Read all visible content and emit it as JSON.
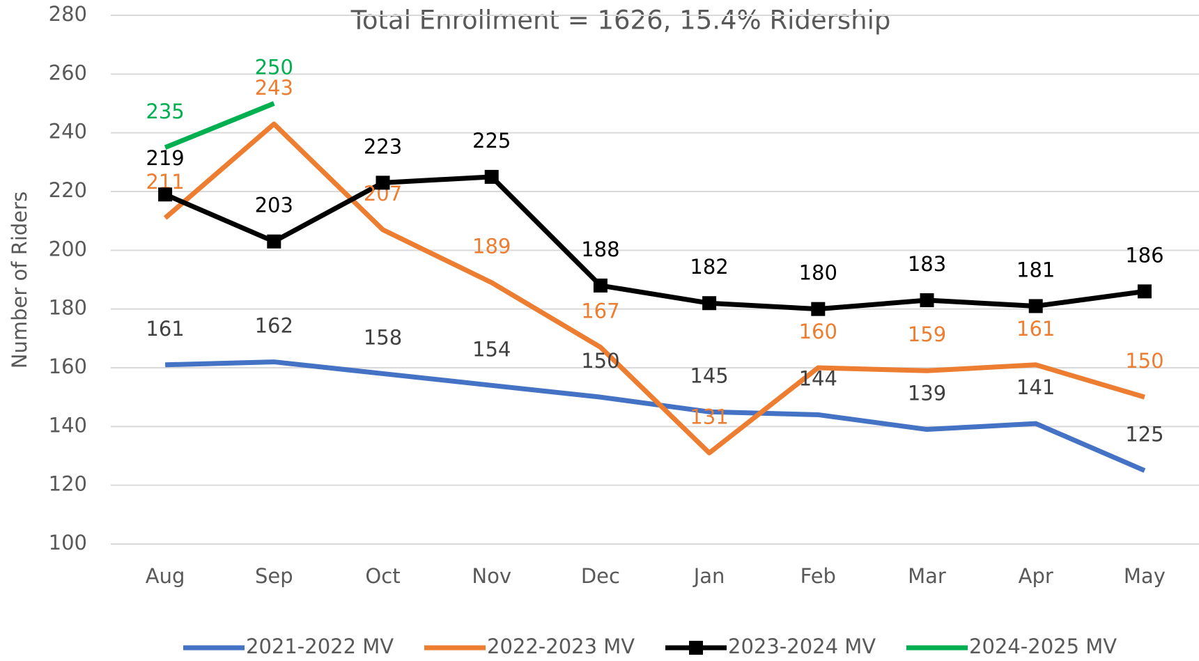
{
  "chart_data": {
    "type": "line",
    "title": "Total Enrollment = 1626, 15.4% Ridership",
    "y_label": "Number of Riders",
    "categories": [
      "Aug",
      "Sep",
      "Oct",
      "Nov",
      "Dec",
      "Jan",
      "Feb",
      "Mar",
      "Apr",
      "May"
    ],
    "series": [
      {
        "name": "2021-2022 MV",
        "color": "#4472c4",
        "label_color": "#404040",
        "values": [
          161,
          162,
          158,
          154,
          150,
          145,
          144,
          139,
          141,
          125
        ]
      },
      {
        "name": "2022-2023 MV",
        "color": "#ed7d31",
        "label_color": "#ed7d31",
        "values": [
          211,
          243,
          207,
          189,
          167,
          131,
          160,
          159,
          161,
          150
        ]
      },
      {
        "name": "2023-2024 MV",
        "color": "#000000",
        "label_color": "#000000",
        "marker": "square",
        "values": [
          219,
          203,
          223,
          225,
          188,
          182,
          180,
          183,
          181,
          186
        ]
      },
      {
        "name": "2024-2025 MV",
        "color": "#00b050",
        "label_color": "#00b050",
        "values": [
          235,
          250,
          null,
          null,
          null,
          null,
          null,
          null,
          null,
          null
        ]
      }
    ],
    "ylim": [
      100,
      280
    ],
    "yticks": [
      100,
      120,
      140,
      160,
      180,
      200,
      220,
      240,
      260,
      280
    ],
    "grid": true,
    "legend": "bottom"
  }
}
